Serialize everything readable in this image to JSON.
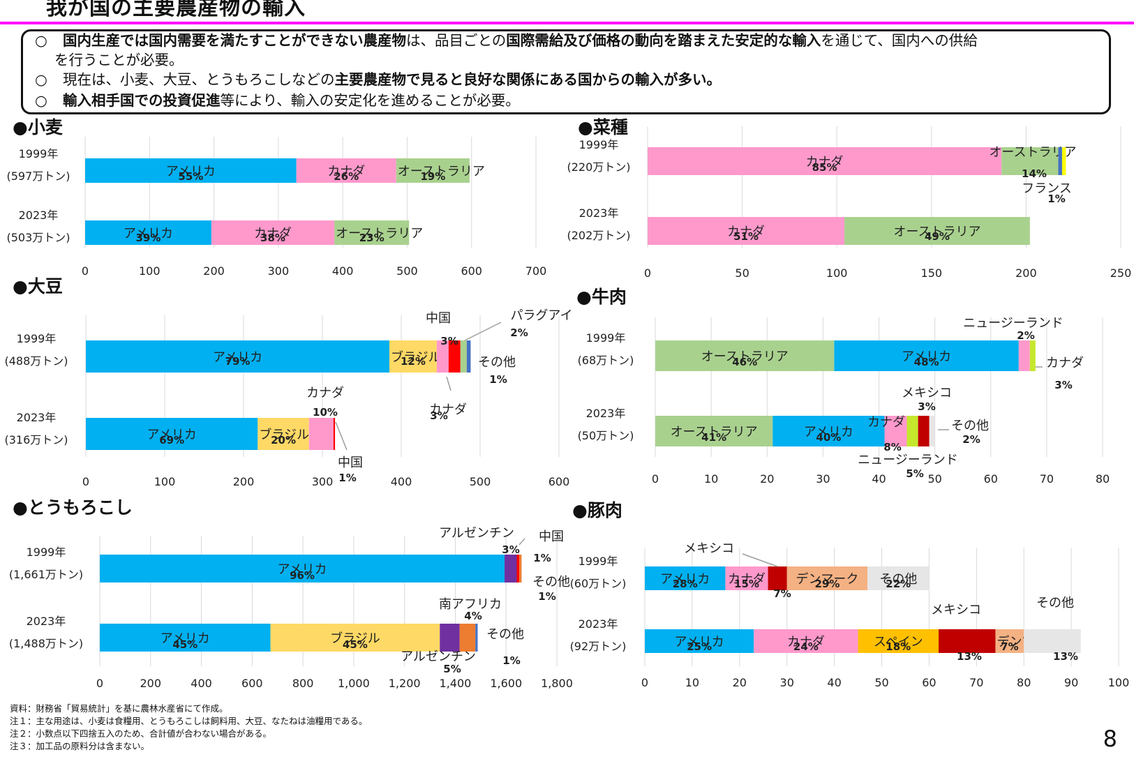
{
  "page": {
    "title": "我が国の主要農産物の輸入",
    "page_number": "8",
    "accent": "#ff00ff"
  },
  "summary": [
    {
      "mark": "○",
      "parts": [
        {
          "t": "国内生産では国内需要を満たすことができない農産物",
          "b": true
        },
        {
          "t": "は、品目ごとの",
          "b": false
        },
        {
          "t": "国際需給及び価格の動向を踏まえた安定的な輸入",
          "b": true
        },
        {
          "t": "を通じて、国内への供給",
          "b": false
        }
      ]
    },
    {
      "mark": "",
      "parts": [
        {
          "t": "を行うことが必要。",
          "b": false
        }
      ]
    },
    {
      "mark": "○",
      "parts": [
        {
          "t": "現在は、小麦、大豆、とうもろこしなどの",
          "b": false
        },
        {
          "t": "主要農産物で見ると良好な関係にある国からの輸入が多い。",
          "b": true
        }
      ]
    },
    {
      "mark": "○",
      "parts": [
        {
          "t": "輸入相手国での投資促進",
          "b": true
        },
        {
          "t": "等により、輸入の安定化を進めることが必要。",
          "b": false
        }
      ]
    }
  ],
  "chart_data": [
    {
      "type": "bar",
      "orientation": "horizontal",
      "stacked": true,
      "title": "●小麦",
      "unit": "万トン",
      "xlim": [
        0,
        700
      ],
      "ticks": [
        "0",
        "100",
        "200",
        "300",
        "400",
        "500",
        "600",
        "700"
      ],
      "rows": [
        {
          "label": "1999年",
          "total": "(597万トン)",
          "segments": [
            {
              "name": "アメリカ",
              "value": 328,
              "pct": "55%",
              "color": "#00b0f0"
            },
            {
              "name": "カナダ",
              "value": 155,
              "pct": "26%",
              "color": "#ff99cc"
            },
            {
              "name": "オーストラリア",
              "value": 114,
              "pct": "19%",
              "color": "#a9d18e"
            }
          ]
        },
        {
          "label": "2023年",
          "total": "(503万トン)",
          "segments": [
            {
              "name": "アメリカ",
              "value": 196,
              "pct": "39%",
              "color": "#00b0f0"
            },
            {
              "name": "カナダ",
              "value": 191,
              "pct": "38%",
              "color": "#ff99cc"
            },
            {
              "name": "オーストラリア",
              "value": 116,
              "pct": "23%",
              "color": "#a9d18e"
            }
          ]
        }
      ]
    },
    {
      "type": "bar",
      "orientation": "horizontal",
      "stacked": true,
      "title": "●菜種",
      "unit": "万トン",
      "xlim": [
        0,
        250
      ],
      "ticks": [
        "0",
        "50",
        "100",
        "150",
        "200",
        "250"
      ],
      "rows": [
        {
          "label": "1999年",
          "total": "(220万トン)",
          "segments": [
            {
              "name": "カナダ",
              "value": 187,
              "pct": "85%",
              "color": "#ff99cc"
            },
            {
              "name": "オーストラリア",
              "value": 30,
              "pct": "14%",
              "color": "#a9d18e"
            },
            {
              "name": "",
              "value": 2,
              "pct": "",
              "color": "#4472c4"
            },
            {
              "name": "フランス",
              "value": 2,
              "pct": "1%",
              "color": "#ffff00"
            }
          ]
        },
        {
          "label": "2023年",
          "total": "(202万トン)",
          "segments": [
            {
              "name": "カナダ",
              "value": 104,
              "pct": "51%",
              "color": "#ff99cc"
            },
            {
              "name": "オーストラリア",
              "value": 98,
              "pct": "49%",
              "color": "#a9d18e"
            }
          ]
        }
      ]
    },
    {
      "type": "bar",
      "orientation": "horizontal",
      "stacked": true,
      "title": "●大豆",
      "unit": "万トン",
      "xlim": [
        0,
        600
      ],
      "ticks": [
        "0",
        "100",
        "200",
        "300",
        "400",
        "500",
        "600"
      ],
      "rows": [
        {
          "label": "1999年",
          "total": "(488万トン)",
          "segments": [
            {
              "name": "アメリカ",
              "value": 385,
              "pct": "79%",
              "color": "#00b0f0"
            },
            {
              "name": "ブラジル",
              "value": 60,
              "pct": "12%",
              "color": "#ffd966"
            },
            {
              "name": "カナダ",
              "value": 15,
              "pct": "3%",
              "color": "#ff99cc"
            },
            {
              "name": "中国",
              "value": 15,
              "pct": "3%",
              "color": "#ff0000"
            },
            {
              "name": "パラグアイ",
              "value": 8,
              "pct": "2%",
              "color": "#a9d18e"
            },
            {
              "name": "その他",
              "value": 5,
              "pct": "1%",
              "color": "#4472c4"
            }
          ]
        },
        {
          "label": "2023年",
          "total": "(316万トン)",
          "segments": [
            {
              "name": "アメリカ",
              "value": 218,
              "pct": "69%",
              "color": "#00b0f0"
            },
            {
              "name": "ブラジル",
              "value": 65,
              "pct": "20%",
              "color": "#ffd966"
            },
            {
              "name": "カナダ",
              "value": 31,
              "pct": "10%",
              "color": "#ff99cc"
            },
            {
              "name": "中国",
              "value": 2,
              "pct": "1%",
              "color": "#ff0000"
            }
          ]
        }
      ]
    },
    {
      "type": "bar",
      "orientation": "horizontal",
      "stacked": true,
      "title": "●牛肉",
      "unit": "万トン",
      "xlim": [
        0,
        80
      ],
      "ticks": [
        "0",
        "10",
        "20",
        "30",
        "40",
        "50",
        "60",
        "70",
        "80"
      ],
      "rows": [
        {
          "label": "1999年",
          "total": "(68万トン)",
          "segments": [
            {
              "name": "オーストラリア",
              "value": 32,
              "pct": "46%",
              "color": "#a9d18e"
            },
            {
              "name": "アメリカ",
              "value": 33,
              "pct": "48%",
              "color": "#00b0f0"
            },
            {
              "name": "カナダ",
              "value": 2,
              "pct": "3%",
              "color": "#ff99cc"
            },
            {
              "name": "ニュージーランド",
              "value": 1,
              "pct": "2%",
              "color": "#c5e82d"
            }
          ]
        },
        {
          "label": "2023年",
          "total": "(50万トン)",
          "segments": [
            {
              "name": "オーストラリア",
              "value": 21,
              "pct": "41%",
              "color": "#a9d18e"
            },
            {
              "name": "アメリカ",
              "value": 20,
              "pct": "40%",
              "color": "#00b0f0"
            },
            {
              "name": "カナダ",
              "value": 4,
              "pct": "8%",
              "color": "#ff99cc"
            },
            {
              "name": "ニュージーランド",
              "value": 2,
              "pct": "5%",
              "color": "#c5e82d"
            },
            {
              "name": "メキシコ",
              "value": 2,
              "pct": "3%",
              "color": "#c00000"
            },
            {
              "name": "その他",
              "value": 1,
              "pct": "2%",
              "color": "#e7e6e6"
            }
          ]
        }
      ]
    },
    {
      "type": "bar",
      "orientation": "horizontal",
      "stacked": true,
      "title": "●とうもろこし",
      "unit": "万トン",
      "xlim": [
        0,
        1800
      ],
      "ticks": [
        "0",
        "200",
        "400",
        "600",
        "800",
        "1,000",
        "1,200",
        "1,400",
        "1,600",
        "1,800"
      ],
      "rows": [
        {
          "label": "1999年",
          "total": "(1,661万トン)",
          "segments": [
            {
              "name": "アメリカ",
              "value": 1594,
              "pct": "96%",
              "color": "#00b0f0"
            },
            {
              "name": "アルゼンチン",
              "value": 48,
              "pct": "3%",
              "color": "#7030a0"
            },
            {
              "name": "中国",
              "value": 10,
              "pct": "1%",
              "color": "#ff0000"
            },
            {
              "name": "その他",
              "value": 9,
              "pct": "1%",
              "color": "#ed7d31"
            }
          ]
        },
        {
          "label": "2023年",
          "total": "(1,488万トン)",
          "segments": [
            {
              "name": "アメリカ",
              "value": 672,
              "pct": "45%",
              "color": "#00b0f0"
            },
            {
              "name": "ブラジル",
              "value": 667,
              "pct": "45%",
              "color": "#ffd966"
            },
            {
              "name": "アルゼンチン",
              "value": 78,
              "pct": "5%",
              "color": "#7030a0"
            },
            {
              "name": "南アフリカ",
              "value": 62,
              "pct": "4%",
              "color": "#ed7d31"
            },
            {
              "name": "その他",
              "value": 9,
              "pct": "1%",
              "color": "#4472c4"
            }
          ]
        }
      ]
    },
    {
      "type": "bar",
      "orientation": "horizontal",
      "stacked": true,
      "title": "●豚肉",
      "unit": "万トン",
      "xlim": [
        0,
        100
      ],
      "ticks": [
        "0",
        "10",
        "20",
        "30",
        "40",
        "50",
        "60",
        "70",
        "80",
        "90",
        "100"
      ],
      "rows": [
        {
          "label": "1999年",
          "total": "(60万トン)",
          "segments": [
            {
              "name": "アメリカ",
              "value": 17,
              "pct": "28%",
              "color": "#00b0f0"
            },
            {
              "name": "カナダ",
              "value": 9,
              "pct": "15%",
              "color": "#ff99cc"
            },
            {
              "name": "メキシコ",
              "value": 4,
              "pct": "7%",
              "color": "#c00000"
            },
            {
              "name": "デンマーク",
              "value": 17,
              "pct": "29%",
              "color": "#f4b183"
            },
            {
              "name": "その他",
              "value": 13,
              "pct": "22%",
              "color": "#e7e6e6"
            }
          ]
        },
        {
          "label": "2023年",
          "total": "(92万トン)",
          "segments": [
            {
              "name": "アメリカ",
              "value": 23,
              "pct": "25%",
              "color": "#00b0f0"
            },
            {
              "name": "カナダ",
              "value": 22,
              "pct": "24%",
              "color": "#ff99cc"
            },
            {
              "name": "スペイン",
              "value": 17,
              "pct": "18%",
              "color": "#ffc000"
            },
            {
              "name": "メキシコ",
              "value": 12,
              "pct": "13%",
              "color": "#c00000"
            },
            {
              "name": "デンマーク",
              "value": 6,
              "pct": "7%",
              "color": "#f4b183"
            },
            {
              "name": "その他",
              "value": 12,
              "pct": "13%",
              "color": "#e7e6e6"
            }
          ]
        }
      ]
    }
  ],
  "notes": [
    "資料：財務省「貿易統計」を基に農林水産省にて作成。",
    "注１：主な用途は、小麦は食糧用、とうもろこしは飼料用、大豆、なたねは油糧用である。",
    "注２：小数点以下四捨五入のため、合計値が合わない場合がある。",
    "注３：加工品の原料分は含まない。"
  ]
}
